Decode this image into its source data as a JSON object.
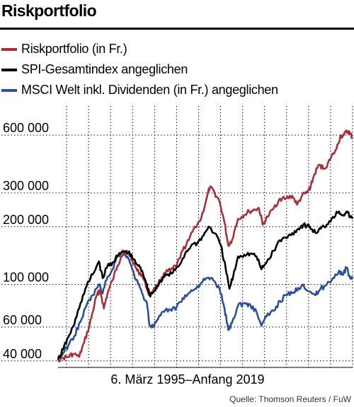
{
  "chart_data": {
    "type": "line",
    "title": "Riskportfolio",
    "xlabel": "6. März 1995–Anfang 2019",
    "ylabel": "",
    "y_scale": "log",
    "ylim": [
      37000,
      850000
    ],
    "xlim": [
      1995.18,
      2019.1
    ],
    "grid": true,
    "legend_position": "top-left",
    "y_ticks": [
      {
        "value": 40000,
        "label": "40 000"
      },
      {
        "value": 60000,
        "label": "60 000"
      },
      {
        "value": 100000,
        "label": "100 000"
      },
      {
        "value": 200000,
        "label": "200 000"
      },
      {
        "value": 300000,
        "label": "300 000"
      },
      {
        "value": 600000,
        "label": "600 000"
      }
    ],
    "series": [
      {
        "name": "Riskportfolio (in Fr.)",
        "color": "#a8303a",
        "points": [
          [
            1995.18,
            40500
          ],
          [
            1995.6,
            41500
          ],
          [
            1996.0,
            42000
          ],
          [
            1996.4,
            43500
          ],
          [
            1996.9,
            42000
          ],
          [
            1997.3,
            50000
          ],
          [
            1997.7,
            60000
          ],
          [
            1998.0,
            72000
          ],
          [
            1998.3,
            87000
          ],
          [
            1998.6,
            94000
          ],
          [
            1998.9,
            75000
          ],
          [
            1999.2,
            90000
          ],
          [
            1999.6,
            105000
          ],
          [
            2000.0,
            125000
          ],
          [
            2000.3,
            140000
          ],
          [
            2000.6,
            148000
          ],
          [
            2000.9,
            146000
          ],
          [
            2001.2,
            135000
          ],
          [
            2001.6,
            118000
          ],
          [
            2002.0,
            112000
          ],
          [
            2002.4,
            95000
          ],
          [
            2002.6,
            90000
          ],
          [
            2002.9,
            93000
          ],
          [
            2003.3,
            100000
          ],
          [
            2003.8,
            115000
          ],
          [
            2004.3,
            118000
          ],
          [
            2004.8,
            125000
          ],
          [
            2005.3,
            150000
          ],
          [
            2005.8,
            170000
          ],
          [
            2006.3,
            200000
          ],
          [
            2006.8,
            220000
          ],
          [
            2007.3,
            290000
          ],
          [
            2007.5,
            320000
          ],
          [
            2007.9,
            300000
          ],
          [
            2008.3,
            270000
          ],
          [
            2008.7,
            210000
          ],
          [
            2009.0,
            160000
          ],
          [
            2009.3,
            170000
          ],
          [
            2009.8,
            220000
          ],
          [
            2010.3,
            230000
          ],
          [
            2010.7,
            240000
          ],
          [
            2011.2,
            245000
          ],
          [
            2011.5,
            250000
          ],
          [
            2011.8,
            205000
          ],
          [
            2012.2,
            225000
          ],
          [
            2012.7,
            250000
          ],
          [
            2013.2,
            280000
          ],
          [
            2013.7,
            280000
          ],
          [
            2014.2,
            290000
          ],
          [
            2014.6,
            260000
          ],
          [
            2015.0,
            290000
          ],
          [
            2015.4,
            300000
          ],
          [
            2015.7,
            325000
          ],
          [
            2016.0,
            375000
          ],
          [
            2016.4,
            420000
          ],
          [
            2016.8,
            400000
          ],
          [
            2017.3,
            450000
          ],
          [
            2017.8,
            510000
          ],
          [
            2018.1,
            590000
          ],
          [
            2018.4,
            600000
          ],
          [
            2018.7,
            630000
          ],
          [
            2018.9,
            610000
          ],
          [
            2019.1,
            580000
          ]
        ]
      },
      {
        "name": "SPI-Gesamtindex angeglichen",
        "color": "#000000",
        "points": [
          [
            1995.18,
            40500
          ],
          [
            1995.6,
            46000
          ],
          [
            1996.0,
            53000
          ],
          [
            1996.5,
            62000
          ],
          [
            1997.0,
            80000
          ],
          [
            1997.5,
            98000
          ],
          [
            1998.0,
            113000
          ],
          [
            1998.5,
            132000
          ],
          [
            1998.8,
            108000
          ],
          [
            1999.2,
            125000
          ],
          [
            1999.6,
            130000
          ],
          [
            2000.0,
            140000
          ],
          [
            2000.4,
            148000
          ],
          [
            2000.9,
            147000
          ],
          [
            2001.2,
            138000
          ],
          [
            2001.7,
            125000
          ],
          [
            2002.0,
            118000
          ],
          [
            2002.4,
            100000
          ],
          [
            2002.6,
            88000
          ],
          [
            2003.0,
            92000
          ],
          [
            2003.5,
            105000
          ],
          [
            2004.0,
            112000
          ],
          [
            2004.5,
            115000
          ],
          [
            2005.0,
            125000
          ],
          [
            2005.5,
            145000
          ],
          [
            2006.0,
            160000
          ],
          [
            2006.5,
            165000
          ],
          [
            2007.0,
            180000
          ],
          [
            2007.4,
            200000
          ],
          [
            2007.9,
            185000
          ],
          [
            2008.4,
            160000
          ],
          [
            2008.8,
            120000
          ],
          [
            2009.1,
            95000
          ],
          [
            2009.4,
            110000
          ],
          [
            2009.8,
            140000
          ],
          [
            2010.3,
            143000
          ],
          [
            2010.8,
            145000
          ],
          [
            2011.3,
            140000
          ],
          [
            2011.7,
            120000
          ],
          [
            2012.1,
            130000
          ],
          [
            2012.7,
            150000
          ],
          [
            2013.2,
            170000
          ],
          [
            2013.7,
            175000
          ],
          [
            2014.2,
            185000
          ],
          [
            2014.7,
            195000
          ],
          [
            2015.1,
            205000
          ],
          [
            2015.6,
            200000
          ],
          [
            2016.1,
            185000
          ],
          [
            2016.5,
            195000
          ],
          [
            2017.0,
            205000
          ],
          [
            2017.5,
            225000
          ],
          [
            2018.0,
            240000
          ],
          [
            2018.3,
            230000
          ],
          [
            2018.6,
            240000
          ],
          [
            2018.9,
            225000
          ],
          [
            2019.1,
            220000
          ]
        ]
      },
      {
        "name": "MSCI Welt inkl. Dividenden (in Fr.) angeglichen",
        "color": "#2a4f9c",
        "points": [
          [
            1995.18,
            41500
          ],
          [
            1995.6,
            44000
          ],
          [
            1996.0,
            48000
          ],
          [
            1996.5,
            54000
          ],
          [
            1997.0,
            64000
          ],
          [
            1997.5,
            78000
          ],
          [
            1998.0,
            88000
          ],
          [
            1998.5,
            100000
          ],
          [
            1998.8,
            90000
          ],
          [
            1999.2,
            110000
          ],
          [
            1999.6,
            120000
          ],
          [
            2000.0,
            140000
          ],
          [
            2000.4,
            150000
          ],
          [
            2000.8,
            140000
          ],
          [
            2001.2,
            120000
          ],
          [
            2001.7,
            100000
          ],
          [
            2002.0,
            90000
          ],
          [
            2002.4,
            80000
          ],
          [
            2002.6,
            62000
          ],
          [
            2002.9,
            60000
          ],
          [
            2003.3,
            66000
          ],
          [
            2003.8,
            72000
          ],
          [
            2004.3,
            74000
          ],
          [
            2004.8,
            76000
          ],
          [
            2005.3,
            85000
          ],
          [
            2005.8,
            90000
          ],
          [
            2006.3,
            95000
          ],
          [
            2006.8,
            102000
          ],
          [
            2007.3,
            108000
          ],
          [
            2007.8,
            105000
          ],
          [
            2008.3,
            95000
          ],
          [
            2008.7,
            75000
          ],
          [
            2009.0,
            58000
          ],
          [
            2009.3,
            63000
          ],
          [
            2009.8,
            78000
          ],
          [
            2010.3,
            80000
          ],
          [
            2010.8,
            78000
          ],
          [
            2011.3,
            72000
          ],
          [
            2011.7,
            61000
          ],
          [
            2012.1,
            68000
          ],
          [
            2012.7,
            73000
          ],
          [
            2013.2,
            82000
          ],
          [
            2013.7,
            88000
          ],
          [
            2014.2,
            90000
          ],
          [
            2014.7,
            96000
          ],
          [
            2015.1,
            100000
          ],
          [
            2015.6,
            92000
          ],
          [
            2016.1,
            88000
          ],
          [
            2016.5,
            95000
          ],
          [
            2017.0,
            100000
          ],
          [
            2017.5,
            108000
          ],
          [
            2018.0,
            118000
          ],
          [
            2018.3,
            112000
          ],
          [
            2018.6,
            122000
          ],
          [
            2018.9,
            108000
          ],
          [
            2019.1,
            110000
          ]
        ]
      }
    ]
  },
  "source": "Quelle: Thomson Reuters / FuW"
}
